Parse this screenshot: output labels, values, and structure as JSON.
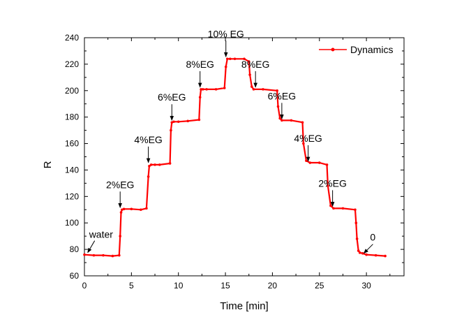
{
  "chart_data": {
    "type": "line",
    "title": "",
    "xlabel": "Time [min]",
    "ylabel": "R",
    "xlim": [
      0,
      34
    ],
    "ylim": [
      60,
      240
    ],
    "xticks": [
      0,
      5,
      10,
      15,
      20,
      25,
      30
    ],
    "yticks": [
      60,
      80,
      100,
      120,
      140,
      160,
      180,
      200,
      220,
      240
    ],
    "legend_position": "top-right",
    "series_color": "#ff0000",
    "series": [
      {
        "name": "Dynamics",
        "x": [
          0,
          1,
          2,
          3,
          3.7,
          3.8,
          3.9,
          4.0,
          4.2,
          5,
          6,
          6.6,
          6.8,
          6.9,
          7.1,
          7.5,
          8,
          9.1,
          9.2,
          9.3,
          9.5,
          10,
          11,
          12.2,
          12.3,
          12.4,
          12.6,
          13,
          14,
          14.9,
          15.05,
          15.2,
          15.5,
          16,
          17,
          17.5,
          17.6,
          17.8,
          18,
          19,
          20.5,
          20.6,
          20.8,
          21,
          22,
          23.2,
          23.3,
          23.6,
          24,
          25,
          25.8,
          25.9,
          26.2,
          26.5,
          27.5,
          28.8,
          28.9,
          29.0,
          29.15,
          29.3,
          29.6,
          30,
          31,
          32
        ],
        "y": [
          76,
          75.5,
          75.5,
          75,
          75.5,
          90,
          108,
          110,
          110.5,
          110.5,
          110,
          111,
          135,
          143,
          144,
          144,
          144,
          145,
          170,
          176,
          176.5,
          176.5,
          177,
          178,
          195,
          201,
          201,
          201,
          201,
          202,
          218,
          224,
          224,
          224,
          224,
          222,
          212,
          203,
          201,
          201,
          200,
          188,
          179,
          177.5,
          177.5,
          176,
          160,
          147,
          145.5,
          145.5,
          144,
          128,
          113,
          111,
          111,
          110,
          100,
          88,
          79,
          77.5,
          77,
          76,
          75.5,
          75
        ]
      }
    ],
    "annotations": [
      {
        "text": "water",
        "x": 0.2,
        "y": 76
      },
      {
        "text": "2%EG",
        "x": 3.8,
        "y": 110
      },
      {
        "text": "4%EG",
        "x": 6.8,
        "y": 144
      },
      {
        "text": "6%EG",
        "x": 9.3,
        "y": 176
      },
      {
        "text": "8%EG",
        "x": 12.3,
        "y": 201
      },
      {
        "text": "10% EG",
        "x": 15.05,
        "y": 224
      },
      {
        "text": "8%EG",
        "x": 18.2,
        "y": 201
      },
      {
        "text": "6%EG",
        "x": 21.0,
        "y": 177
      },
      {
        "text": "4%EG",
        "x": 23.8,
        "y": 145
      },
      {
        "text": "2%EG",
        "x": 26.4,
        "y": 111
      },
      {
        "text": "0",
        "x": 29.8,
        "y": 76
      }
    ]
  }
}
